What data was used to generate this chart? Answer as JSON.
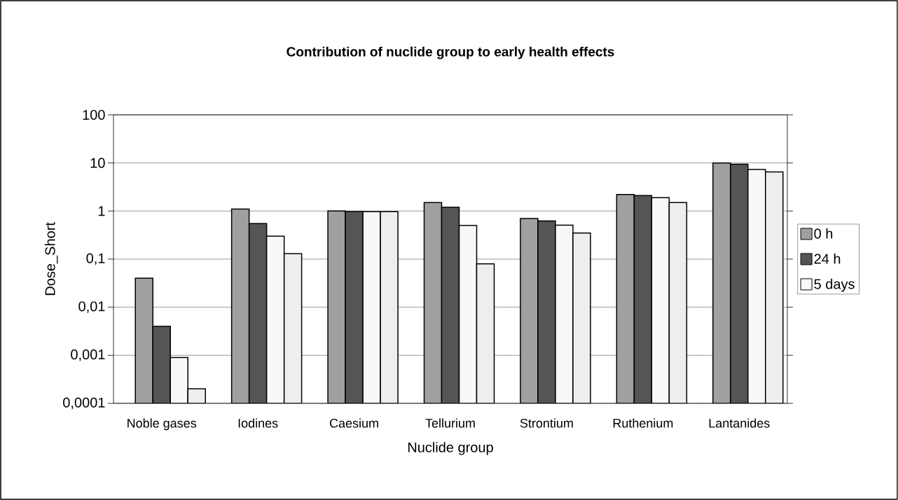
{
  "chart_data": {
    "type": "bar",
    "title": "Contribution of nuclide group to early health effects",
    "xlabel": "Nuclide group",
    "ylabel": "Dose_Short",
    "categories": [
      "Noble gases",
      "Iodines",
      "Caesium",
      "Tellurium",
      "Strontium",
      "Ruthenium",
      "Lantanides"
    ],
    "series": [
      {
        "name": "0 h",
        "color": "#a0a0a0",
        "values": [
          0.04,
          1.1,
          1.0,
          1.5,
          0.7,
          2.2,
          10
        ]
      },
      {
        "name": "24 h",
        "color": "#555555",
        "values": [
          0.004,
          0.55,
          0.98,
          1.2,
          0.62,
          2.1,
          9.4
        ]
      },
      {
        "name": "5 days",
        "color": "#f8f8f8",
        "values": [
          0.0009,
          0.3,
          0.97,
          0.5,
          0.51,
          1.9,
          7.3
        ]
      },
      {
        "color": "#eeeeee",
        "values": [
          0.0002,
          0.13,
          0.97,
          0.08,
          0.35,
          1.5,
          6.5
        ]
      }
    ],
    "log": "y",
    "ylim": [
      0.0001,
      100
    ],
    "yticks": [
      {
        "value": 0.0001,
        "label": "0,0001"
      },
      {
        "value": 0.001,
        "label": "0,001"
      },
      {
        "value": 0.01,
        "label": "0,01"
      },
      {
        "value": 0.1,
        "label": "0,1"
      },
      1,
      10,
      100
    ],
    "grid": "y",
    "legend": "right"
  }
}
